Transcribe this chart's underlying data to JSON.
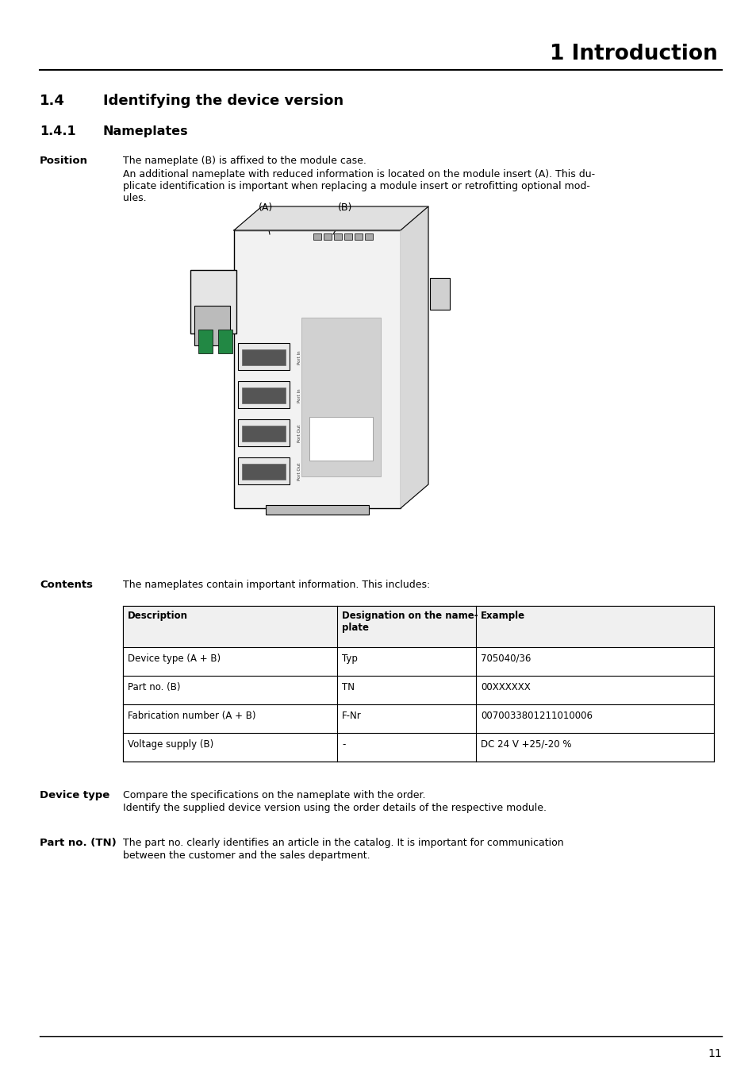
{
  "page_number": "11",
  "header_title": "1 Introduction",
  "section_14": "1.4",
  "section_14_title": "Identifying the device version",
  "section_141": "1.4.1",
  "section_141_title": "Nameplates",
  "position_label": "Position",
  "position_text1": "The nameplate (B) is affixed to the module case.",
  "position_text2a": "An additional nameplate with reduced information is located on the module insert (A). This du-",
  "position_text2b": "plicate identification is important when replacing a module insert or retrofitting optional mod-",
  "position_text2c": "ules.",
  "label_A": "(A)",
  "label_B": "(B)",
  "contents_label": "Contents",
  "contents_text": "The nameplates contain important information. This includes:",
  "table_headers": [
    "Description",
    "Designation on the name-\nplate",
    "Example"
  ],
  "table_rows": [
    [
      "Device type (A + B)",
      "Typ",
      "705040/36"
    ],
    [
      "Part no. (B)",
      "TN",
      "00XXXXXX"
    ],
    [
      "Fabrication number (A + B)",
      "F-Nr",
      "0070033801211010006"
    ],
    [
      "Voltage supply (B)",
      "-",
      "DC 24 V +25/-20 %"
    ]
  ],
  "device_type_label": "Device type",
  "device_type_text1": "Compare the specifications on the nameplate with the order.",
  "device_type_text2": "Identify the supplied device version using the order details of the respective module.",
  "part_no_label": "Part no. (TN)",
  "part_no_text1": "The part no. clearly identifies an article in the catalog. It is important for communication",
  "part_no_text2": "between the customer and the sales department.",
  "bg_color": "#ffffff",
  "text_color": "#000000"
}
